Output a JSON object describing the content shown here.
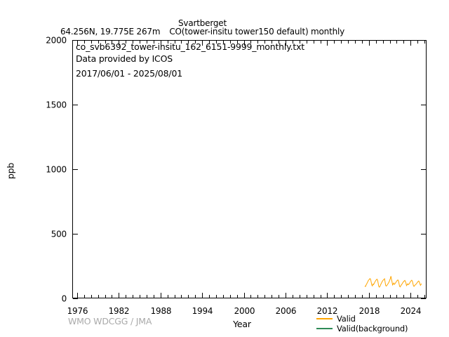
{
  "header": {
    "station": "Svartberget",
    "coordinates": "64.256N, 19.775E 267m",
    "descriptor": "CO(tower-insitu tower150 default) monthly"
  },
  "inset": {
    "filename": "co_svb6392_tower-insitu_162_6151-9999_monthly.txt",
    "provider": "Data provided by ICOS",
    "date_range": "2017/06/01 - 2025/08/01"
  },
  "footer": {
    "attribution": "WMO WDCGG / JMA"
  },
  "colors": {
    "valid": "#FFA500",
    "valid_background": "#2E8B57",
    "attribution_gray": "#AAAAAA",
    "axis": "#000000"
  },
  "chart_data": {
    "type": "line",
    "title": "Svartberget",
    "subtitle": "64.256N, 19.775E 267m  CO(tower-insitu tower150 default) monthly",
    "xlabel": "Year",
    "ylabel": "ppb",
    "xlim": [
      1975.3,
      2026.3
    ],
    "ylim": [
      0,
      2000
    ],
    "xticks_major": [
      1976,
      1982,
      1988,
      1994,
      2000,
      2006,
      2012,
      2018,
      2024
    ],
    "xtick_minor_step": 1,
    "yticks_major": [
      0,
      500,
      1000,
      1500,
      2000
    ],
    "grid": false,
    "legend_position": "below-right",
    "series": [
      {
        "name": "Valid",
        "color": "#FFA500",
        "unit": "ppb",
        "x_start": 2017.4167,
        "x_step_years": 0.0833333,
        "period": "2017-06 to 2025-08",
        "values": [
          97,
          92,
          102,
          110,
          119,
          129,
          138,
          143,
          149,
          153,
          146,
          126,
          104,
          97,
          111,
          107,
          114,
          124,
          132,
          139,
          145,
          149,
          141,
          119,
          94,
          87,
          92,
          102,
          112,
          122,
          131,
          137,
          143,
          147,
          152,
          127,
          101,
          95,
          100,
          106,
          113,
          121,
          129,
          141,
          152,
          172,
          149,
          128,
          104,
          112,
          119,
          108,
          113,
          119,
          127,
          133,
          139,
          143,
          136,
          117,
          95,
          89,
          96,
          104,
          110,
          117,
          125,
          129,
          135,
          139,
          132,
          119,
          99,
          106,
          113,
          106,
          110,
          115,
          123,
          131,
          137,
          141,
          134,
          117,
          97,
          93,
          100,
          104,
          108,
          113,
          119,
          125,
          131,
          135,
          128,
          115,
          101,
          108,
          114
        ]
      },
      {
        "name": "Valid(background)",
        "color": "#2E8B57",
        "unit": "ppb",
        "values": []
      }
    ]
  }
}
